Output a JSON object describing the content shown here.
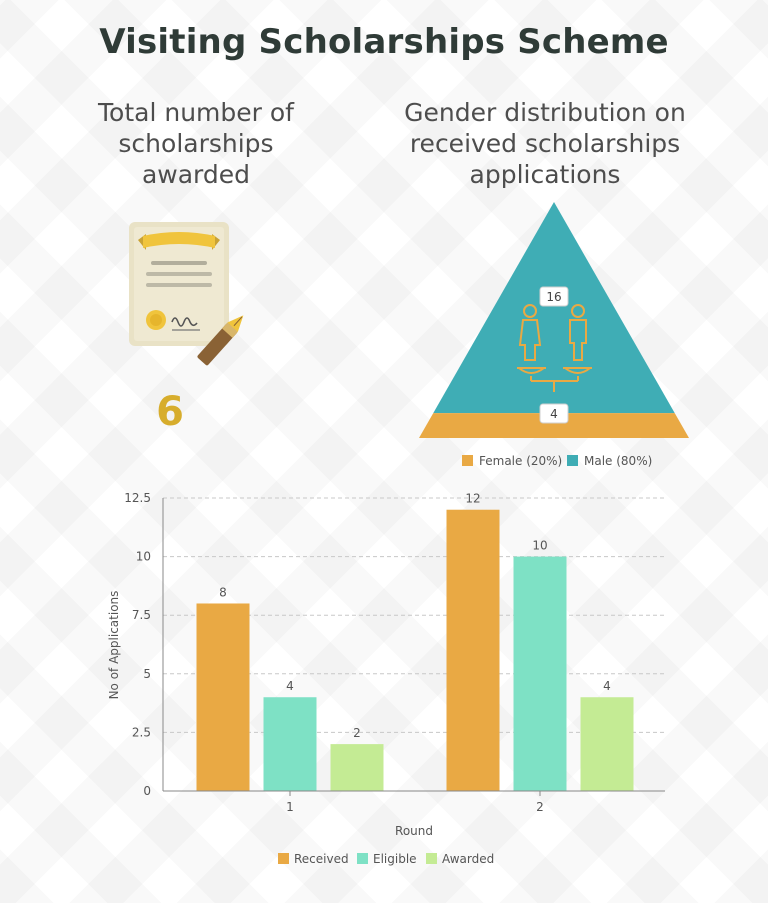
{
  "title": "Visiting Scholarships Scheme",
  "left_panel": {
    "heading_lines": [
      "Total number of",
      "scholarships",
      "awarded"
    ],
    "icon": "certificate-icon",
    "total_awarded": "6"
  },
  "right_panel": {
    "heading_lines": [
      "Gender distribution on",
      "received scholarships",
      "applications"
    ],
    "icon": "gender-scale-icon",
    "colors": {
      "female": "#e9a944",
      "male": "#3fadb5"
    }
  },
  "chart_data": [
    {
      "type": "pie",
      "shape": "pyramid",
      "categories": [
        "Female",
        "Male"
      ],
      "values": [
        4,
        16
      ],
      "value_labels": [
        "4",
        "16"
      ],
      "legend": [
        "Female  (20%)",
        "Male (80%)"
      ],
      "legend_position": "bottom",
      "colors": [
        "#e9a944",
        "#3fadb5"
      ]
    },
    {
      "type": "bar",
      "categories": [
        "1",
        "2"
      ],
      "series": [
        {
          "name": "Received",
          "values": [
            8,
            12
          ],
          "color": "#e9a944"
        },
        {
          "name": "Eligible",
          "values": [
            4,
            10
          ],
          "color": "#7ee1c5"
        },
        {
          "name": "Awarded",
          "values": [
            2,
            4
          ],
          "color": "#c4eb94"
        }
      ],
      "xlabel": "Round",
      "ylabel": "No of Applications",
      "ylim": [
        0,
        12.5
      ],
      "yticks": [
        "0",
        "2.5",
        "5",
        "7.5",
        "10",
        "12.5"
      ],
      "grid": true,
      "legend_position": "bottom"
    }
  ]
}
